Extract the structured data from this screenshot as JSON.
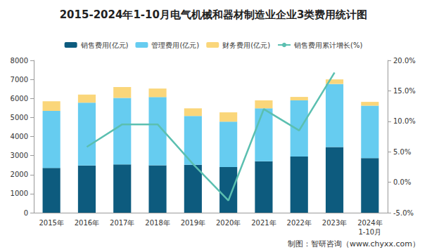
{
  "chart_data": {
    "type": "bar",
    "title": "2015-2024年1-10月电气机械和器材制造业企业3类费用统计图",
    "annotation": "制图：智研咨询（www.chyxx.com）",
    "categories": [
      "2015年",
      "2016年",
      "2017年",
      "2018年",
      "2019年",
      "2020年",
      "2021年",
      "2022年",
      "2023年",
      "2024年\n1-10月"
    ],
    "stacked": true,
    "legend": "top",
    "grid": false,
    "ylim": [
      0,
      8000
    ],
    "yticks": [
      0,
      1000,
      2000,
      3000,
      4000,
      5000,
      6000,
      7000,
      8000
    ],
    "y2lim": [
      -5,
      20
    ],
    "y2ticks": [
      {
        "value": -5,
        "label": "-5.0%"
      },
      {
        "value": 0,
        "label": "0.0%"
      },
      {
        "value": 5,
        "label": "5.0%"
      },
      {
        "value": 10,
        "label": "10.0%"
      },
      {
        "value": 15,
        "label": "15.0%"
      },
      {
        "value": 20,
        "label": "20.0%"
      }
    ],
    "series": [
      {
        "name": "销售费用(亿元)",
        "type": "bar",
        "color": "#0d5b7e",
        "values": [
          2350,
          2480,
          2530,
          2490,
          2520,
          2400,
          2700,
          2950,
          3450,
          2870
        ]
      },
      {
        "name": "管理费用(亿元)",
        "type": "bar",
        "color": "#66ccf0",
        "values": [
          3000,
          3300,
          3500,
          3580,
          2560,
          2380,
          2780,
          2950,
          3310,
          2750
        ]
      },
      {
        "name": "财务费用(亿元)",
        "type": "bar",
        "color": "#fad67a",
        "values": [
          500,
          420,
          570,
          450,
          400,
          490,
          420,
          180,
          240,
          200
        ]
      },
      {
        "name": "销售费用累计增长(%)",
        "type": "line",
        "axis": "y2",
        "color": "#5bbfb0",
        "values": [
          null,
          5.8,
          9.5,
          9.5,
          3.0,
          -3.0,
          12.0,
          8.5,
          18.0,
          null
        ]
      }
    ]
  }
}
